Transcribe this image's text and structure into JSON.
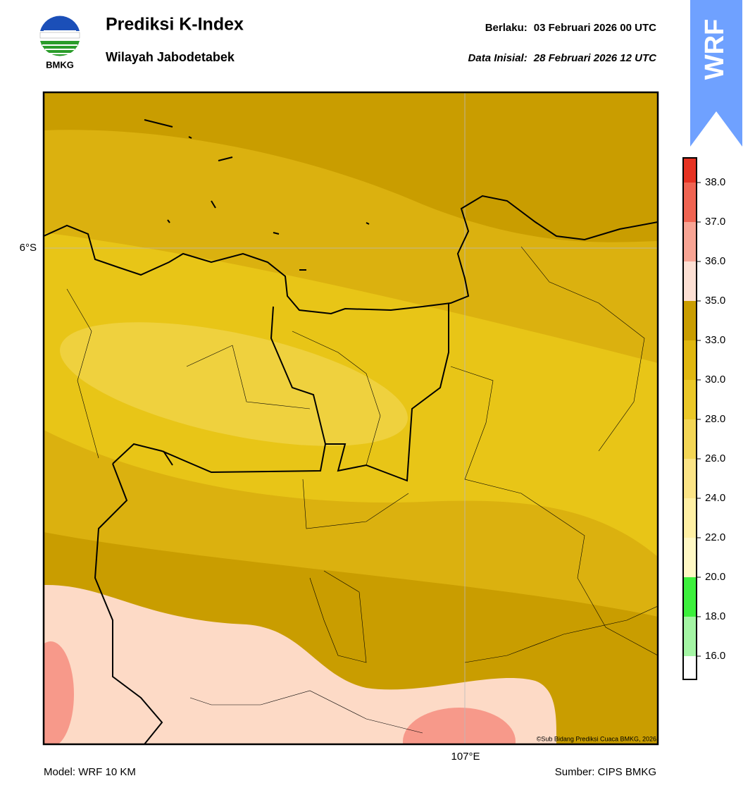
{
  "header": {
    "title": "Prediksi K-Index",
    "subtitle": "Wilayah Jabodetabek",
    "valid_label": "Berlaku:",
    "valid_time": "03 Februari 2026 00 UTC",
    "init_label": "Data Inisial:",
    "init_time": "28 Februari 2026 12 UTC",
    "logo_text": "BMKG",
    "badge": "WRF"
  },
  "map": {
    "lat_label": "6°S",
    "lon_label": "107°E",
    "credit": "©Sub Bidang Prediksi Cuaca BMKG, 2026"
  },
  "colorbar": {
    "ticks": [
      {
        "value": 16,
        "label": "16.0"
      },
      {
        "value": 18,
        "label": "18.0"
      },
      {
        "value": 20,
        "label": "20.0"
      },
      {
        "value": 22,
        "label": "22.0"
      },
      {
        "value": 24,
        "label": "24.0"
      },
      {
        "value": 26,
        "label": "26.0"
      },
      {
        "value": 28,
        "label": "28.0"
      },
      {
        "value": 30,
        "label": "30.0"
      },
      {
        "value": 33,
        "label": "33.0"
      },
      {
        "value": 35,
        "label": "35.0"
      },
      {
        "value": 36,
        "label": "36.0"
      },
      {
        "value": 37,
        "label": "37.0"
      },
      {
        "value": 38,
        "label": "38.0"
      }
    ],
    "colors": [
      "#ffffff",
      "#a4f5a4",
      "#3cf03c",
      "#fff8c4",
      "#fff0a4",
      "#fbe486",
      "#f3d655",
      "#ebc828",
      "#e0b70f",
      "#c99d00",
      "#fde0d4",
      "#f8a494",
      "#f06452",
      "#e63222"
    ]
  },
  "footer": {
    "model": "Model: WRF 10 KM",
    "source": "Sumber: CIPS BMKG"
  }
}
